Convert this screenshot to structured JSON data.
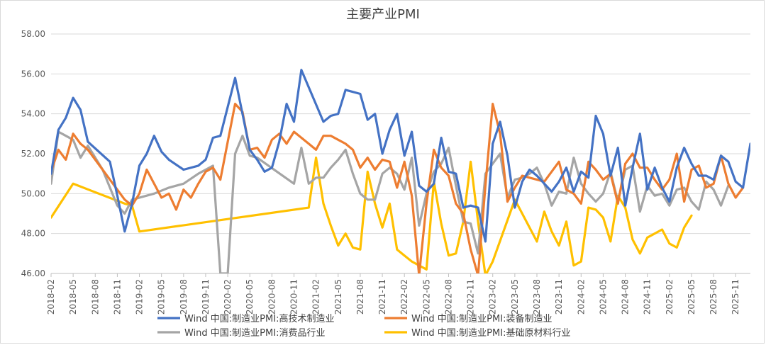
{
  "chart_data": {
    "type": "line",
    "title": "主要产业PMI",
    "xlabel": "",
    "ylabel": "",
    "ylim": [
      46.0,
      58.0
    ],
    "yticks": [
      "46.00",
      "48.00",
      "50.00",
      "52.00",
      "54.00",
      "56.00",
      "58.00"
    ],
    "x_tick_labels": [
      "2018-02",
      "2018-05",
      "2018-08",
      "2018-11",
      "2019-02",
      "2019-05",
      "2019-08",
      "2019-11",
      "2020-02",
      "2020-05",
      "2020-08",
      "2020-11",
      "2021-02",
      "2021-05",
      "2021-08",
      "2021-11",
      "2022-02",
      "2022-05",
      "2022-08",
      "2022-11",
      "2023-02",
      "2023-05",
      "2023-08",
      "2023-11",
      "2024-02",
      "2024-05",
      "2024-08",
      "2024-11",
      "2025-02",
      "2025-05",
      "2025-08",
      "2025-11"
    ],
    "grid": "horizontal",
    "legend_position": "bottom",
    "series": [
      {
        "name": "Wind 中国:制造业PMI:高技术制造业",
        "color": "#4472c4",
        "points": [
          [
            0,
            51.0
          ],
          [
            1,
            53.2
          ],
          [
            2,
            53.8
          ],
          [
            3,
            54.8
          ],
          [
            4,
            54.2
          ],
          [
            5,
            52.6
          ],
          [
            8,
            51.6
          ],
          [
            9,
            49.9
          ],
          [
            10,
            48.1
          ],
          [
            11,
            49.5
          ],
          [
            12,
            51.4
          ],
          [
            13,
            52.0
          ],
          [
            14,
            52.9
          ],
          [
            15,
            52.1
          ],
          [
            16,
            51.7
          ],
          [
            18,
            51.2
          ],
          [
            20,
            51.4
          ],
          [
            21,
            51.7
          ],
          [
            22,
            52.8
          ],
          [
            23,
            52.9
          ],
          [
            25,
            55.8
          ],
          [
            26,
            54.0
          ],
          [
            27,
            52.2
          ],
          [
            28,
            51.7
          ],
          [
            29,
            51.1
          ],
          [
            30,
            51.3
          ],
          [
            31,
            52.6
          ],
          [
            32,
            54.5
          ],
          [
            33,
            53.6
          ],
          [
            34,
            56.2
          ],
          [
            37,
            53.6
          ],
          [
            38,
            53.9
          ],
          [
            39,
            54.0
          ],
          [
            40,
            55.2
          ],
          [
            42,
            55.0
          ],
          [
            43,
            53.7
          ],
          [
            44,
            54.0
          ],
          [
            45,
            52.0
          ],
          [
            46,
            53.2
          ],
          [
            47,
            54.0
          ],
          [
            48,
            51.9
          ],
          [
            49,
            53.1
          ],
          [
            50,
            50.4
          ],
          [
            51,
            50.1
          ],
          [
            52,
            50.5
          ],
          [
            53,
            52.8
          ],
          [
            54,
            51.1
          ],
          [
            55,
            51.0
          ],
          [
            56,
            49.3
          ],
          [
            57,
            49.4
          ],
          [
            58,
            49.3
          ],
          [
            59,
            47.6
          ],
          [
            60,
            52.5
          ],
          [
            61,
            53.6
          ],
          [
            62,
            51.9
          ],
          [
            63,
            49.3
          ],
          [
            64,
            50.6
          ],
          [
            65,
            51.2
          ],
          [
            66,
            50.9
          ],
          [
            68,
            50.1
          ],
          [
            69,
            50.6
          ],
          [
            70,
            51.3
          ],
          [
            71,
            50.1
          ],
          [
            72,
            51.1
          ],
          [
            73,
            50.8
          ],
          [
            74,
            53.9
          ],
          [
            75,
            53.0
          ],
          [
            76,
            50.9
          ],
          [
            77,
            52.3
          ],
          [
            78,
            49.4
          ],
          [
            79,
            51.3
          ],
          [
            80,
            53.0
          ],
          [
            81,
            50.2
          ],
          [
            82,
            51.3
          ],
          [
            83,
            50.3
          ],
          [
            84,
            49.6
          ],
          [
            85,
            51.3
          ],
          [
            86,
            52.3
          ],
          [
            87,
            51.5
          ],
          [
            88,
            50.9
          ],
          [
            89,
            50.9
          ],
          [
            90,
            50.7
          ],
          [
            91,
            51.9
          ],
          [
            92,
            51.6
          ],
          [
            93,
            50.6
          ],
          [
            94,
            50.3
          ],
          [
            95,
            52.5
          ]
        ]
      },
      {
        "name": "Wind 中国:制造业PMI:装备制造业",
        "color": "#ed7d31",
        "points": [
          [
            0,
            51.1
          ],
          [
            1,
            52.2
          ],
          [
            2,
            51.7
          ],
          [
            3,
            53.0
          ],
          [
            4,
            52.5
          ],
          [
            5,
            52.2
          ],
          [
            7,
            51.2
          ],
          [
            8,
            50.7
          ],
          [
            9,
            50.2
          ],
          [
            10,
            49.7
          ],
          [
            11,
            49.4
          ],
          [
            12,
            50.0
          ],
          [
            13,
            51.2
          ],
          [
            14,
            50.5
          ],
          [
            15,
            49.8
          ],
          [
            16,
            50.0
          ],
          [
            17,
            49.2
          ],
          [
            18,
            50.2
          ],
          [
            19,
            49.8
          ],
          [
            20,
            50.5
          ],
          [
            21,
            51.1
          ],
          [
            22,
            51.3
          ],
          [
            23,
            50.7
          ],
          [
            25,
            54.5
          ],
          [
            26,
            54.1
          ],
          [
            27,
            52.2
          ],
          [
            28,
            52.3
          ],
          [
            29,
            51.8
          ],
          [
            30,
            52.7
          ],
          [
            31,
            53.0
          ],
          [
            32,
            52.5
          ],
          [
            33,
            53.1
          ],
          [
            35,
            52.5
          ],
          [
            36,
            52.2
          ],
          [
            37,
            52.9
          ],
          [
            38,
            52.9
          ],
          [
            39,
            52.7
          ],
          [
            40,
            52.5
          ],
          [
            41,
            52.2
          ],
          [
            42,
            51.3
          ],
          [
            43,
            51.8
          ],
          [
            44,
            51.2
          ],
          [
            45,
            51.7
          ],
          [
            46,
            51.6
          ],
          [
            47,
            50.3
          ],
          [
            48,
            51.6
          ],
          [
            49,
            49.9
          ],
          [
            50,
            45.9
          ],
          [
            51,
            49.5
          ],
          [
            52,
            52.2
          ],
          [
            53,
            51.3
          ],
          [
            54,
            50.9
          ],
          [
            55,
            49.5
          ],
          [
            56,
            49.0
          ],
          [
            57,
            47.2
          ],
          [
            58,
            45.9
          ],
          [
            59,
            50.4
          ],
          [
            60,
            54.5
          ],
          [
            61,
            53.0
          ],
          [
            62,
            49.6
          ],
          [
            63,
            50.3
          ],
          [
            64,
            50.9
          ],
          [
            65,
            50.8
          ],
          [
            66,
            50.7
          ],
          [
            67,
            50.6
          ],
          [
            68,
            51.1
          ],
          [
            69,
            51.6
          ],
          [
            70,
            50.2
          ],
          [
            71,
            50.0
          ],
          [
            72,
            49.5
          ],
          [
            73,
            51.6
          ],
          [
            74,
            51.2
          ],
          [
            75,
            50.7
          ],
          [
            76,
            51.0
          ],
          [
            77,
            49.5
          ],
          [
            78,
            51.5
          ],
          [
            79,
            52.0
          ],
          [
            80,
            51.3
          ],
          [
            81,
            51.3
          ],
          [
            82,
            50.7
          ],
          [
            83,
            50.2
          ],
          [
            84,
            50.7
          ],
          [
            85,
            52.0
          ],
          [
            86,
            49.6
          ],
          [
            87,
            51.2
          ],
          [
            88,
            51.4
          ],
          [
            89,
            50.3
          ],
          [
            90,
            50.5
          ],
          [
            91,
            51.9
          ],
          [
            92,
            50.5
          ],
          [
            93,
            49.8
          ],
          [
            94,
            50.3
          ]
        ]
      },
      {
        "name": "Wind 中国:制造业PMI:消费品行业",
        "color": "#a5a5a5",
        "points": [
          [
            0,
            50.5
          ],
          [
            1,
            53.1
          ],
          [
            2,
            52.9
          ],
          [
            3,
            52.7
          ],
          [
            4,
            51.8
          ],
          [
            5,
            52.4
          ],
          [
            7,
            51.2
          ],
          [
            8,
            50.3
          ],
          [
            9,
            49.4
          ],
          [
            10,
            49.0
          ],
          [
            11,
            49.7
          ],
          [
            14,
            50.0
          ],
          [
            16,
            50.3
          ],
          [
            18,
            50.5
          ],
          [
            20,
            51.0
          ],
          [
            21,
            51.2
          ],
          [
            22,
            51.4
          ],
          [
            23,
            46.0
          ],
          [
            24,
            46.0
          ],
          [
            25,
            52.0
          ],
          [
            26,
            52.9
          ],
          [
            27,
            51.9
          ],
          [
            28,
            51.8
          ],
          [
            33,
            50.5
          ],
          [
            34,
            52.3
          ],
          [
            35,
            50.5
          ],
          [
            36,
            50.8
          ],
          [
            37,
            50.8
          ],
          [
            38,
            51.3
          ],
          [
            39,
            51.7
          ],
          [
            40,
            52.2
          ],
          [
            41,
            51.0
          ],
          [
            42,
            50.0
          ],
          [
            43,
            49.7
          ],
          [
            44,
            49.7
          ],
          [
            45,
            51.0
          ],
          [
            46,
            51.3
          ],
          [
            47,
            51.0
          ],
          [
            48,
            50.2
          ],
          [
            49,
            51.8
          ],
          [
            50,
            48.4
          ],
          [
            51,
            50.0
          ],
          [
            52,
            51.1
          ],
          [
            53,
            51.5
          ],
          [
            54,
            52.3
          ],
          [
            55,
            50.4
          ],
          [
            56,
            48.6
          ],
          [
            57,
            48.5
          ],
          [
            58,
            47.0
          ],
          [
            59,
            51.0
          ],
          [
            60,
            51.5
          ],
          [
            61,
            52.0
          ],
          [
            62,
            49.8
          ],
          [
            63,
            50.7
          ],
          [
            64,
            50.8
          ],
          [
            65,
            51.0
          ],
          [
            66,
            51.3
          ],
          [
            67,
            50.5
          ],
          [
            68,
            49.4
          ],
          [
            69,
            50.1
          ],
          [
            70,
            50.0
          ],
          [
            71,
            51.8
          ],
          [
            72,
            50.5
          ],
          [
            73,
            50.0
          ],
          [
            74,
            49.6
          ],
          [
            75,
            50.0
          ],
          [
            76,
            51.1
          ],
          [
            77,
            49.6
          ],
          [
            78,
            51.2
          ],
          [
            79,
            51.4
          ],
          [
            80,
            49.1
          ],
          [
            81,
            50.4
          ],
          [
            82,
            49.9
          ],
          [
            83,
            50.0
          ],
          [
            84,
            49.4
          ],
          [
            85,
            50.2
          ],
          [
            86,
            50.3
          ],
          [
            87,
            49.6
          ],
          [
            88,
            49.2
          ],
          [
            89,
            50.6
          ],
          [
            90,
            50.2
          ],
          [
            91,
            49.4
          ],
          [
            92,
            50.4
          ]
        ]
      },
      {
        "name": "Wind 中国:制造业PMI:基础原材料行业",
        "color": "#ffc000",
        "points": [
          [
            0,
            48.8
          ],
          [
            3,
            50.5
          ],
          [
            10,
            49.5
          ],
          [
            11,
            49.4
          ],
          [
            12,
            48.1
          ],
          [
            35,
            49.3
          ],
          [
            36,
            51.8
          ],
          [
            37,
            49.5
          ],
          [
            38,
            48.4
          ],
          [
            39,
            47.4
          ],
          [
            40,
            48.0
          ],
          [
            41,
            47.3
          ],
          [
            42,
            47.2
          ],
          [
            43,
            51.1
          ],
          [
            44,
            49.5
          ],
          [
            45,
            48.3
          ],
          [
            46,
            49.5
          ],
          [
            47,
            47.2
          ],
          [
            48,
            46.9
          ],
          [
            49,
            46.6
          ],
          [
            50,
            46.4
          ],
          [
            51,
            46.2
          ],
          [
            52,
            50.6
          ],
          [
            53,
            48.5
          ],
          [
            54,
            46.9
          ],
          [
            55,
            47.0
          ],
          [
            56,
            48.6
          ],
          [
            57,
            51.6
          ],
          [
            58,
            48.6
          ],
          [
            59,
            45.9
          ],
          [
            60,
            46.6
          ],
          [
            63,
            49.7
          ],
          [
            66,
            47.6
          ],
          [
            67,
            49.1
          ],
          [
            68,
            48.1
          ],
          [
            69,
            47.4
          ],
          [
            70,
            48.6
          ],
          [
            71,
            46.4
          ],
          [
            72,
            46.6
          ],
          [
            73,
            49.3
          ],
          [
            74,
            49.2
          ],
          [
            75,
            48.8
          ],
          [
            76,
            47.6
          ],
          [
            77,
            49.9
          ],
          [
            78,
            49.3
          ],
          [
            79,
            47.7
          ],
          [
            80,
            47.0
          ],
          [
            81,
            47.8
          ],
          [
            82,
            48.0
          ],
          [
            83,
            48.2
          ],
          [
            84,
            47.5
          ],
          [
            85,
            47.3
          ],
          [
            86,
            48.3
          ],
          [
            87,
            48.9
          ]
        ]
      }
    ]
  }
}
